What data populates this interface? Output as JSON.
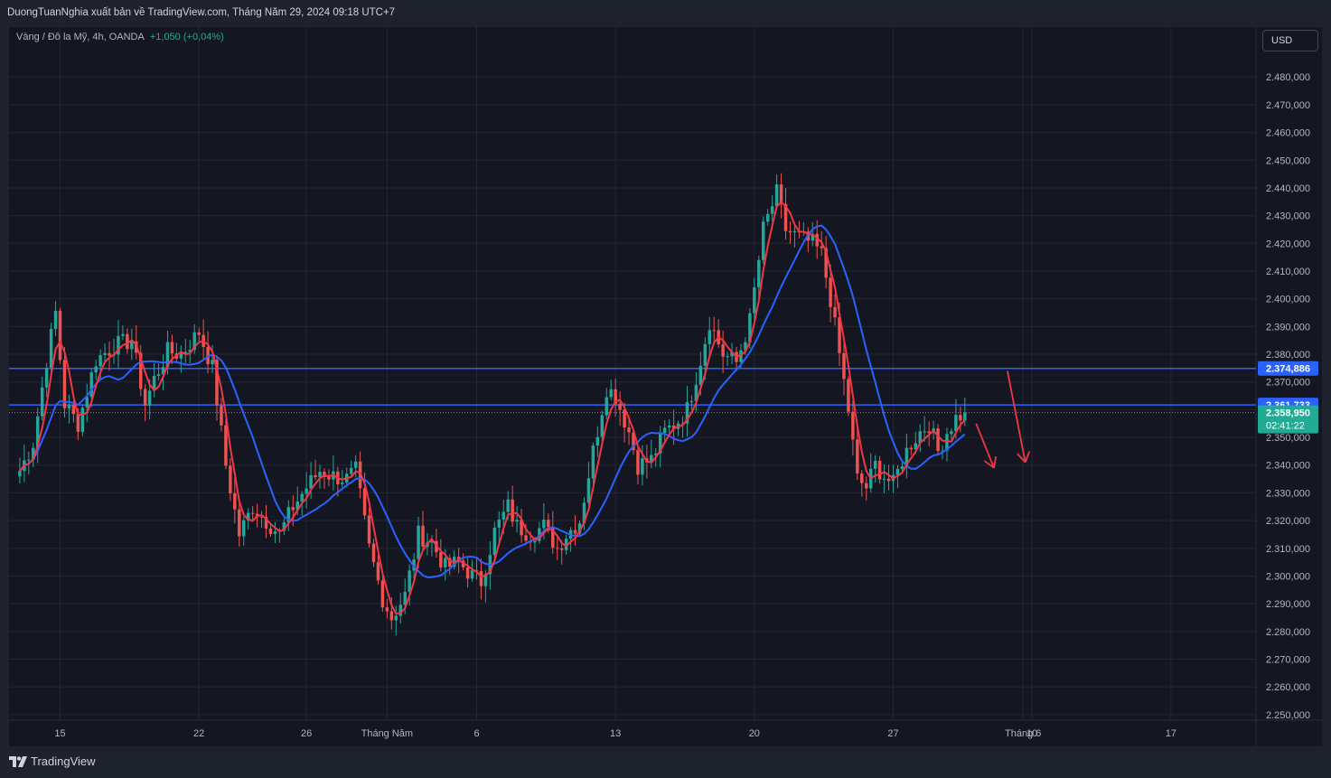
{
  "header": {
    "attribution": "DuongTuanNghia xuất bản về TradingView.com, Tháng Năm 29, 2024 09:18 UTC+7"
  },
  "legend": {
    "symbol": "Vàng / Đô la Mỹ, 4h, OANDA",
    "change": "+1,050 (+0,04%)"
  },
  "currency_button": "USD",
  "footer": {
    "brand": "TradingView"
  },
  "colors": {
    "background": "#141722",
    "grid": "#232733",
    "candle_up": "#26a69a",
    "candle_down": "#ef5350",
    "ma_fast": "#f23645",
    "ma_slow": "#2962ff",
    "hline": "#2962ff",
    "arrow": "#f23645",
    "price_label_up": "#22ab94"
  },
  "chart_data": {
    "type": "candlestick",
    "symbol": "XAUUSD",
    "timeframe": "4h",
    "ylim": [
      2248,
      2498
    ],
    "y_ticks": [
      2250,
      2260,
      2270,
      2280,
      2290,
      2300,
      2310,
      2320,
      2330,
      2340,
      2350,
      2360,
      2370,
      2380,
      2390,
      2400,
      2410,
      2420,
      2430,
      2440,
      2450,
      2460,
      2470,
      2480
    ],
    "y_tick_labels": [
      "2.250,000",
      "2.260,000",
      "2.270,000",
      "2.280,000",
      "2.290,000",
      "2.300,000",
      "2.310,000",
      "2.320,000",
      "2.330,000",
      "2.340,000",
      "2.350,000",
      "2.360,000",
      "2.370,000",
      "2.380,000",
      "2.390,000",
      "2.400,000",
      "2.410,000",
      "2.420,000",
      "2.430,000",
      "2.440,000",
      "2.450,000",
      "2.460,000",
      "2.470,000",
      "2.480,000"
    ],
    "x_ticks": [
      {
        "label": "15",
        "bar": 9
      },
      {
        "label": "22",
        "bar": 40
      },
      {
        "label": "26",
        "bar": 64
      },
      {
        "label": "Tháng Năm",
        "bar": 82
      },
      {
        "label": "6",
        "bar": 102
      },
      {
        "label": "13",
        "bar": 133
      },
      {
        "label": "20",
        "bar": 164
      },
      {
        "label": "27",
        "bar": 195
      },
      {
        "label": "Tháng 6",
        "bar": 224
      },
      {
        "label": "10",
        "bar": 226
      },
      {
        "label": "17",
        "bar": 257
      }
    ],
    "x_bar_range": [
      -2.4,
      276
    ],
    "last_bar": 211,
    "horizontal_lines": [
      {
        "price": 2374.886,
        "label": "2.374,886"
      },
      {
        "price": 2361.733,
        "label": "2.361,733"
      }
    ],
    "current_price": {
      "price": 2358.95,
      "label": "2.358,950",
      "countdown": "02:41:22"
    },
    "arrows": [
      {
        "from": [
          213.5,
          2355
        ],
        "to": [
          217.5,
          2339
        ]
      },
      {
        "from": [
          220.5,
          2374
        ],
        "to": [
          224.5,
          2341
        ]
      }
    ],
    "anchors": [
      [
        0,
        2338
      ],
      [
        3,
        2348
      ],
      [
        6,
        2378
      ],
      [
        8,
        2395
      ],
      [
        10,
        2362
      ],
      [
        13,
        2355
      ],
      [
        17,
        2378
      ],
      [
        21,
        2383
      ],
      [
        25,
        2385
      ],
      [
        28,
        2362
      ],
      [
        30,
        2371
      ],
      [
        33,
        2381
      ],
      [
        36,
        2380
      ],
      [
        40,
        2388
      ],
      [
        43,
        2375
      ],
      [
        46,
        2340
      ],
      [
        49,
        2315
      ],
      [
        52,
        2325
      ],
      [
        55,
        2320
      ],
      [
        58,
        2315
      ],
      [
        61,
        2325
      ],
      [
        64,
        2332
      ],
      [
        67,
        2338
      ],
      [
        70,
        2336
      ],
      [
        73,
        2335
      ],
      [
        75,
        2338
      ],
      [
        78,
        2310
      ],
      [
        81,
        2292
      ],
      [
        83,
        2285
      ],
      [
        86,
        2293
      ],
      [
        89,
        2315
      ],
      [
        92,
        2312
      ],
      [
        95,
        2303
      ],
      [
        98,
        2305
      ],
      [
        101,
        2300
      ],
      [
        103,
        2298
      ],
      [
        106,
        2316
      ],
      [
        109,
        2325
      ],
      [
        111,
        2318
      ],
      [
        114,
        2315
      ],
      [
        117,
        2318
      ],
      [
        120,
        2310
      ],
      [
        122,
        2315
      ],
      [
        125,
        2320
      ],
      [
        128,
        2345
      ],
      [
        131,
        2368
      ],
      [
        133,
        2365
      ],
      [
        136,
        2352
      ],
      [
        138,
        2340
      ],
      [
        141,
        2342
      ],
      [
        144,
        2352
      ],
      [
        147,
        2356
      ],
      [
        149,
        2360
      ],
      [
        152,
        2378
      ],
      [
        154,
        2392
      ],
      [
        157,
        2380
      ],
      [
        160,
        2377
      ],
      [
        163,
        2392
      ],
      [
        166,
        2425
      ],
      [
        169,
        2438
      ],
      [
        171,
        2425
      ],
      [
        174,
        2422
      ],
      [
        177,
        2420
      ],
      [
        179,
        2416
      ],
      [
        181,
        2400
      ],
      [
        183,
        2380
      ],
      [
        185,
        2360
      ],
      [
        187,
        2335
      ],
      [
        189,
        2332
      ],
      [
        191,
        2340
      ],
      [
        193,
        2336
      ],
      [
        195,
        2333
      ],
      [
        197,
        2342
      ],
      [
        199,
        2348
      ],
      [
        201,
        2352
      ],
      [
        203,
        2355
      ],
      [
        205,
        2345
      ],
      [
        207,
        2352
      ],
      [
        209,
        2357
      ],
      [
        211,
        2359
      ]
    ],
    "ma_fast_period": 4,
    "ma_slow_period": 14
  }
}
